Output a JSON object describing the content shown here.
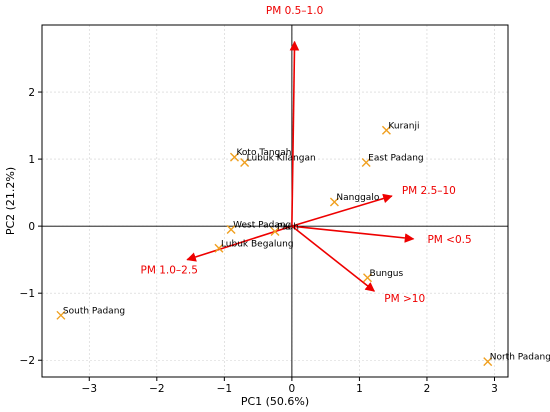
{
  "chart_data": {
    "type": "scatter",
    "title": "",
    "xlabel": "PC1 (50.6%)",
    "ylabel": "PC2 (21.2%)",
    "xlim": [
      -3.7,
      3.2
    ],
    "ylim": [
      -2.25,
      3.0
    ],
    "xticks": [
      -3,
      -2,
      -1,
      0,
      1,
      2,
      3
    ],
    "yticks": [
      -2,
      -1,
      0,
      1,
      2
    ],
    "grid": true,
    "colors": {
      "points": "#f0a020",
      "loadings": "#ee0000",
      "axes": "#000000",
      "grid": "#d0d0d0"
    },
    "points": [
      {
        "name": "Kuranji",
        "x": 1.4,
        "y": 1.43
      },
      {
        "name": "Koto Tangah",
        "x": -0.85,
        "y": 1.03
      },
      {
        "name": "Lubuk Kilangan",
        "x": -0.7,
        "y": 0.95
      },
      {
        "name": "East Padang",
        "x": 1.1,
        "y": 0.95
      },
      {
        "name": "Nanggalo",
        "x": 0.63,
        "y": 0.36
      },
      {
        "name": "West Padang",
        "x": -0.9,
        "y": -0.05
      },
      {
        "name": "Pauh",
        "x": -0.25,
        "y": -0.08
      },
      {
        "name": "Lubuk Begalung",
        "x": -1.08,
        "y": -0.33
      },
      {
        "name": "Bungus",
        "x": 1.12,
        "y": -0.77
      },
      {
        "name": "South Padang",
        "x": -3.42,
        "y": -1.33
      },
      {
        "name": "North Padang",
        "x": 2.9,
        "y": -2.02
      }
    ],
    "loadings": [
      {
        "name": "PM 0.5–1.0",
        "x": 0.04,
        "y": 2.75
      },
      {
        "name": "PM 2.5–10",
        "x": 1.48,
        "y": 0.45
      },
      {
        "name": "PM <0.5",
        "x": 1.8,
        "y": -0.19
      },
      {
        "name": "PM >10",
        "x": 1.22,
        "y": -0.97
      },
      {
        "name": "PM 1.0–2.5",
        "x": -1.55,
        "y": -0.5
      }
    ]
  }
}
